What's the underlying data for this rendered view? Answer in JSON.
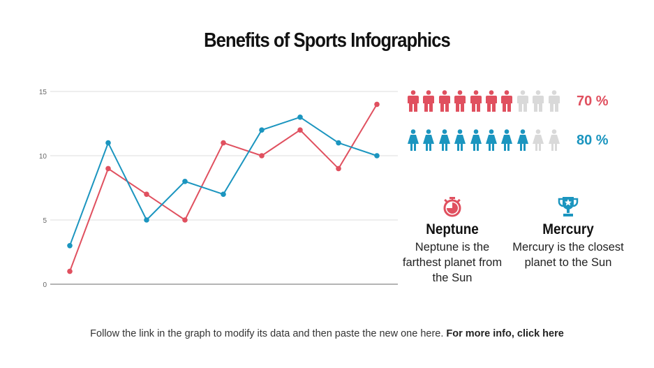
{
  "title": "Benefits of Sports Infographics",
  "colors": {
    "red": "#E0505F",
    "blue": "#1B95BF",
    "inactive": "#D9D9D9"
  },
  "chart_data": {
    "type": "line",
    "x": [
      1,
      2,
      3,
      4,
      5,
      6,
      7,
      8,
      9
    ],
    "ylim": [
      0,
      15
    ],
    "yticks": [
      0,
      5,
      10,
      15
    ],
    "grid": true,
    "series": [
      {
        "color": "#E0505F",
        "values": [
          1,
          9,
          7,
          5,
          11,
          10,
          12,
          9,
          14
        ]
      },
      {
        "color": "#1B95BF",
        "values": [
          3,
          11,
          5,
          8,
          7,
          12,
          13,
          11,
          10
        ]
      }
    ]
  },
  "stats": [
    {
      "icon": "man-icon",
      "filled": 7,
      "total": 10,
      "label": "70 %",
      "color": "#E0505F"
    },
    {
      "icon": "woman-icon",
      "filled": 8,
      "total": 10,
      "label": "80 %",
      "color": "#1B95BF"
    }
  ],
  "features": [
    {
      "icon": "stopwatch-icon",
      "title": "Neptune",
      "text": "Neptune is the farthest planet from the Sun"
    },
    {
      "icon": "trophy-icon",
      "title": "Mercury",
      "text": "Mercury is the closest planet to the Sun"
    }
  ],
  "footer": {
    "text": "Follow the link in the graph to modify its data and then paste the new one here. ",
    "link": "For more info, click here"
  }
}
